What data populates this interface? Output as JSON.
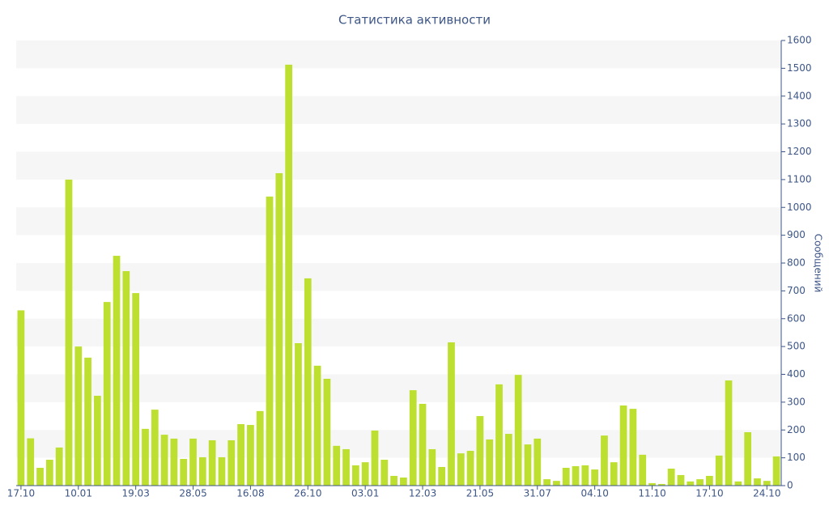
{
  "chart_data": {
    "type": "bar",
    "title": "Статистика активности",
    "y_label": "Сообщений",
    "categories": [
      "17.10",
      null,
      null,
      null,
      null,
      null,
      "10.01",
      null,
      null,
      null,
      null,
      null,
      "19.03",
      null,
      null,
      null,
      null,
      null,
      "28.05",
      null,
      null,
      null,
      null,
      null,
      "16.08",
      null,
      null,
      null,
      null,
      null,
      "26.10",
      null,
      null,
      null,
      null,
      null,
      "03.01",
      null,
      null,
      null,
      null,
      null,
      "12.03",
      null,
      null,
      null,
      null,
      null,
      "21.05",
      null,
      null,
      null,
      null,
      null,
      "31.07",
      null,
      null,
      null,
      null,
      null,
      "04.10",
      null,
      null,
      null,
      null,
      null,
      "11.10",
      null,
      null,
      null,
      null,
      null,
      "17.10",
      null,
      null,
      null,
      null,
      null,
      "24.10",
      null
    ],
    "values": [
      630,
      170,
      64,
      93,
      137,
      1100,
      500,
      460,
      323,
      660,
      826,
      771,
      692,
      204,
      273,
      183,
      169,
      96,
      169,
      102,
      163,
      102,
      163,
      221,
      218,
      268,
      1039,
      1123,
      1513,
      512,
      745,
      431,
      384,
      143,
      131,
      73,
      84,
      198,
      93,
      35,
      29,
      343,
      294,
      131,
      67,
      515,
      116,
      125,
      250,
      166,
      364,
      186,
      398,
      148,
      169,
      23,
      17,
      64,
      70,
      73,
      58,
      180,
      84,
      288,
      276,
      111,
      9,
      6,
      61,
      38,
      15,
      23,
      35,
      108,
      378,
      15,
      192,
      26,
      17,
      105
    ],
    "color": "#bddf2f",
    "ylim": [
      0,
      1600
    ],
    "yticks": [
      0,
      100,
      200,
      300,
      400,
      500,
      600,
      700,
      800,
      900,
      1000,
      1100,
      1200,
      1300,
      1400,
      1500,
      1600
    ],
    "grid": true
  }
}
